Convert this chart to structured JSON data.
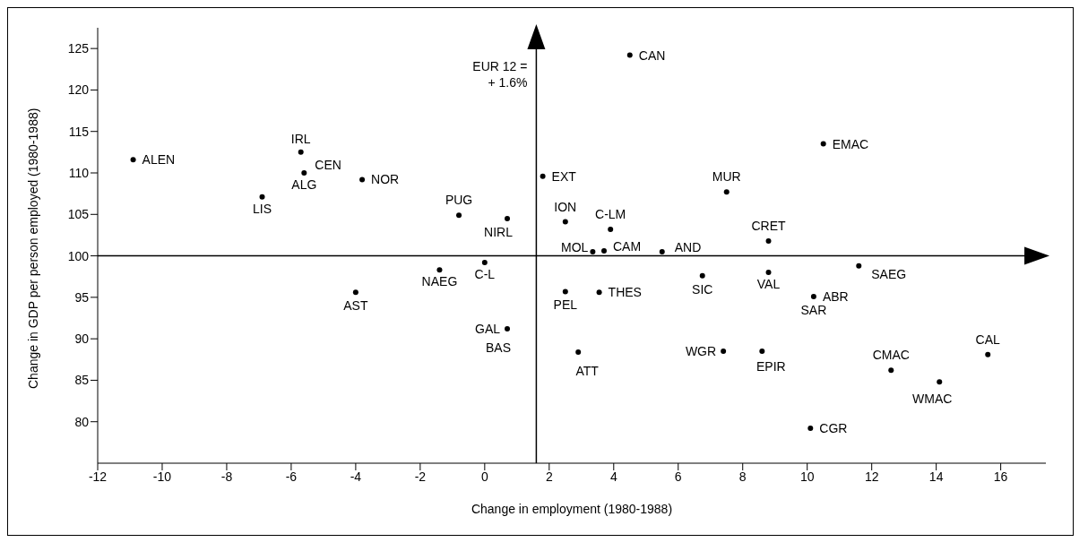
{
  "chart_data": {
    "type": "scatter",
    "xlabel": "Change in employment (1980-1988)",
    "ylabel": "Change in GDP per person employed (1980-1988)",
    "series": [
      {
        "color": "#000000",
        "x": [
          -10.9,
          -5.7,
          -5.6,
          -6.9,
          -3.8,
          -0.8,
          0.7,
          1.8,
          4.5,
          2.5,
          3.9,
          3.35,
          3.7,
          5.5,
          7.5,
          10.5,
          8.8,
          -1.4,
          0,
          -4.0,
          0.7,
          2.5,
          3.55,
          6.75,
          8.8,
          10.2,
          11.6,
          2.9,
          7.4,
          8.6,
          10.1,
          12.6,
          14.1,
          15.6
        ],
        "values": [
          111.6,
          112.5,
          110.0,
          107.1,
          109.2,
          104.9,
          104.5,
          109.6,
          124.2,
          104.1,
          103.2,
          100.5,
          100.6,
          100.5,
          107.7,
          113.5,
          101.8,
          98.3,
          99.2,
          95.6,
          91.2,
          95.7,
          95.6,
          97.6,
          98.0,
          95.1,
          98.8,
          88.4,
          88.5,
          88.5,
          79.2,
          86.2,
          84.8,
          88.1
        ]
      }
    ],
    "xlim": [
      -12,
      17.4
    ],
    "xticks": [
      -12,
      -10,
      -8,
      -6,
      -4,
      -2,
      0,
      2,
      4,
      6,
      8,
      10,
      12,
      14,
      16
    ],
    "ylim": [
      75,
      127.5
    ],
    "yticks": [
      80,
      85,
      90,
      95,
      100,
      105,
      110,
      115,
      120,
      125
    ],
    "grid": false,
    "legend": false,
    "marker": "circle",
    "ref_lines": [
      {
        "axis": "x",
        "value": 1.6,
        "label": "EUR 12 =\n+ 1.6%"
      },
      {
        "axis": "y",
        "value": 100
      }
    ],
    "annotations": [
      {
        "text": "ALEN",
        "x": -10.9,
        "y": 111.6
      },
      {
        "text": "IRL",
        "x": -5.7,
        "y": 112.5
      },
      {
        "text": "CEN",
        "x": -5.6,
        "y": 110.0
      },
      {
        "text": "ALG",
        "x": -5.6,
        "y": 110.0
      },
      {
        "text": "LIS",
        "x": -6.9,
        "y": 107.1
      },
      {
        "text": "NOR",
        "x": -3.8,
        "y": 109.2
      },
      {
        "text": "PUG",
        "x": -0.8,
        "y": 104.9
      },
      {
        "text": "NIRL",
        "x": 0.7,
        "y": 104.5
      },
      {
        "text": "EXT",
        "x": 1.8,
        "y": 109.6
      },
      {
        "text": "CAN",
        "x": 4.5,
        "y": 124.2
      },
      {
        "text": "ION",
        "x": 2.5,
        "y": 104.1
      },
      {
        "text": "C-LM",
        "x": 3.9,
        "y": 103.2
      },
      {
        "text": "MOL",
        "x": 3.35,
        "y": 100.5
      },
      {
        "text": "CAM",
        "x": 3.7,
        "y": 100.6
      },
      {
        "text": "AND",
        "x": 5.5,
        "y": 100.5
      },
      {
        "text": "MUR",
        "x": 7.5,
        "y": 107.7
      },
      {
        "text": "EMAC",
        "x": 10.5,
        "y": 113.5
      },
      {
        "text": "CRET",
        "x": 8.8,
        "y": 101.8
      },
      {
        "text": "NAEG",
        "x": -1.4,
        "y": 98.3
      },
      {
        "text": "C-L",
        "x": 0,
        "y": 99.2
      },
      {
        "text": "AST",
        "x": -4.0,
        "y": 95.6
      },
      {
        "text": "GAL",
        "x": 0.7,
        "y": 91.2
      },
      {
        "text": "BAS",
        "x": 0.7,
        "y": 91.2
      },
      {
        "text": "PEL",
        "x": 2.5,
        "y": 95.7
      },
      {
        "text": "THES",
        "x": 3.55,
        "y": 95.6
      },
      {
        "text": "SIC",
        "x": 6.75,
        "y": 97.6
      },
      {
        "text": "VAL",
        "x": 8.8,
        "y": 98.0
      },
      {
        "text": "ABR",
        "x": 10.2,
        "y": 95.1
      },
      {
        "text": "SAR",
        "x": 10.2,
        "y": 95.1
      },
      {
        "text": "SAEG",
        "x": 11.6,
        "y": 98.8
      },
      {
        "text": "ATT",
        "x": 2.9,
        "y": 88.4
      },
      {
        "text": "WGR",
        "x": 7.4,
        "y": 88.5
      },
      {
        "text": "EPIR",
        "x": 8.6,
        "y": 88.5
      },
      {
        "text": "CGR",
        "x": 10.1,
        "y": 79.2
      },
      {
        "text": "CMAC",
        "x": 12.6,
        "y": 86.2
      },
      {
        "text": "WMAC",
        "x": 14.1,
        "y": 84.8
      },
      {
        "text": "CAL",
        "x": 15.6,
        "y": 88.1
      }
    ]
  }
}
